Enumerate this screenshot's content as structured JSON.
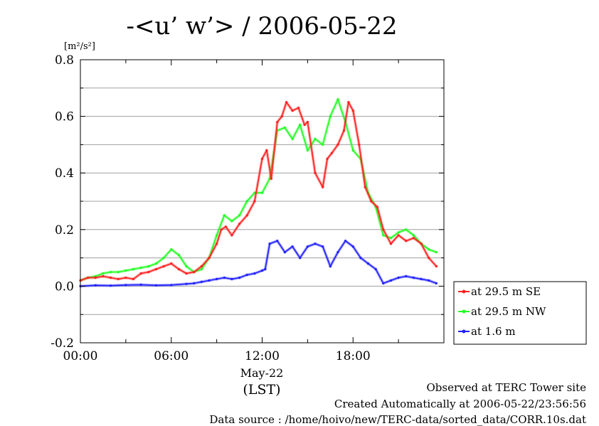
{
  "chart_data": {
    "type": "line",
    "title": "-<u’ w’> / 2006-05-22",
    "ylabel": "[m²/s²]",
    "ylim": [
      -0.2,
      0.8
    ],
    "yticks": [
      -0.2,
      0.0,
      0.2,
      0.4,
      0.6,
      0.8
    ],
    "ytick_labels": [
      "-0.2",
      "0.0",
      "0.2",
      "0.4",
      "0.6",
      "0.8"
    ],
    "xlim": [
      0,
      24
    ],
    "xticks": [
      0,
      6,
      12,
      18
    ],
    "xtick_labels": [
      "00:00",
      "06:00",
      "12:00",
      "18:00"
    ],
    "xlabel_date": "May-22",
    "xlabel_tz": "(LST)",
    "grid": true,
    "legend_position": "right",
    "series": [
      {
        "name": "at 29.5 m SE",
        "color": "#ff2020",
        "x": [
          0,
          0.5,
          1,
          1.5,
          2,
          2.5,
          3,
          3.5,
          4,
          4.5,
          5,
          5.5,
          6,
          6.5,
          7,
          7.5,
          8,
          8.5,
          9,
          9.3,
          9.6,
          10,
          10.5,
          11,
          11.5,
          12,
          12.3,
          12.6,
          13,
          13.3,
          13.6,
          14,
          14.4,
          14.8,
          15,
          15.5,
          16,
          16.3,
          16.6,
          17,
          17.4,
          17.7,
          18,
          18.4,
          18.8,
          19.2,
          19.6,
          20,
          20.5,
          21,
          21.5,
          22,
          22.5,
          23,
          23.5
        ],
        "y": [
          0.02,
          0.03,
          0.03,
          0.035,
          0.03,
          0.025,
          0.03,
          0.025,
          0.045,
          0.05,
          0.06,
          0.07,
          0.08,
          0.06,
          0.045,
          0.05,
          0.07,
          0.1,
          0.15,
          0.2,
          0.21,
          0.18,
          0.22,
          0.25,
          0.3,
          0.45,
          0.48,
          0.38,
          0.58,
          0.6,
          0.65,
          0.62,
          0.63,
          0.57,
          0.58,
          0.4,
          0.35,
          0.45,
          0.47,
          0.5,
          0.55,
          0.65,
          0.62,
          0.5,
          0.35,
          0.3,
          0.28,
          0.2,
          0.15,
          0.18,
          0.16,
          0.17,
          0.15,
          0.1,
          0.07
        ]
      },
      {
        "name": "at 29.5 m NW",
        "color": "#20ff20",
        "x": [
          0,
          0.5,
          1,
          1.5,
          2,
          2.5,
          3,
          3.5,
          4,
          4.5,
          5,
          5.5,
          6,
          6.5,
          7,
          7.5,
          8,
          8.5,
          9,
          9.5,
          10,
          10.5,
          11,
          11.5,
          12,
          12.5,
          13,
          13.5,
          14,
          14.5,
          15,
          15.5,
          16,
          16.5,
          17,
          17.5,
          18,
          18.5,
          19,
          19.5,
          20,
          20.5,
          21,
          21.5,
          22,
          22.5,
          23,
          23.5
        ],
        "y": [
          0.02,
          0.03,
          0.035,
          0.045,
          0.05,
          0.05,
          0.055,
          0.06,
          0.065,
          0.07,
          0.08,
          0.1,
          0.13,
          0.11,
          0.07,
          0.05,
          0.06,
          0.1,
          0.18,
          0.25,
          0.23,
          0.25,
          0.3,
          0.33,
          0.33,
          0.38,
          0.55,
          0.56,
          0.52,
          0.57,
          0.48,
          0.52,
          0.5,
          0.6,
          0.66,
          0.58,
          0.48,
          0.45,
          0.33,
          0.28,
          0.18,
          0.17,
          0.19,
          0.2,
          0.18,
          0.15,
          0.13,
          0.12
        ]
      },
      {
        "name": "at 1.6 m",
        "color": "#2020ff",
        "x": [
          0,
          1,
          2,
          3,
          4,
          5,
          6,
          7,
          7.5,
          8,
          8.5,
          9,
          9.5,
          10,
          10.5,
          11,
          11.5,
          12,
          12.2,
          12.5,
          13,
          13.5,
          14,
          14.5,
          15,
          15.5,
          16,
          16.5,
          17,
          17.5,
          18,
          18.5,
          19,
          19.5,
          20,
          20.5,
          21,
          21.5,
          22,
          22.5,
          23,
          23.5
        ],
        "y": [
          0.0,
          0.003,
          0.002,
          0.004,
          0.005,
          0.003,
          0.004,
          0.008,
          0.01,
          0.015,
          0.02,
          0.025,
          0.03,
          0.025,
          0.03,
          0.04,
          0.045,
          0.055,
          0.06,
          0.15,
          0.16,
          0.12,
          0.14,
          0.1,
          0.14,
          0.15,
          0.14,
          0.07,
          0.12,
          0.16,
          0.14,
          0.1,
          0.08,
          0.06,
          0.01,
          0.02,
          0.03,
          0.035,
          0.03,
          0.025,
          0.02,
          0.01
        ]
      }
    ]
  },
  "footer": {
    "line1": "Observed at TERC Tower site",
    "line2": "Created Automatically at 2006-05-22/23:56:56",
    "line3": "Data source : /home/hoivo/new/TERC-data/sorted_data/CORR.10s.dat"
  }
}
